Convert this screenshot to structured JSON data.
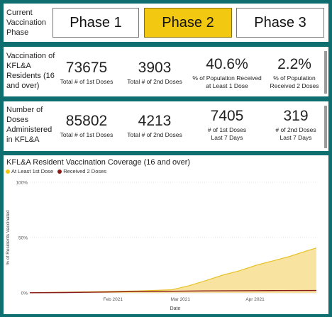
{
  "phase": {
    "label": "Current Vaccination Phase",
    "buttons": [
      "Phase 1",
      "Phase 2",
      "Phase 3"
    ],
    "active": "Phase 2"
  },
  "residents": {
    "label": "Vaccination of KFL&A Residents (16 and over)",
    "stats": [
      {
        "value": "73675",
        "caption": "Total # of 1st Doses"
      },
      {
        "value": "3903",
        "caption": "Total # of 2nd Doses"
      },
      {
        "value": "40.6%",
        "caption": "% of Population Received at Least 1 Dose"
      },
      {
        "value": "2.2%",
        "caption": "% of Population Received 2 Doses"
      }
    ]
  },
  "doses": {
    "label": "Number of Doses Administered in KFL&A",
    "stats": [
      {
        "value": "85802",
        "caption": "Total # of 1st Doses"
      },
      {
        "value": "4213",
        "caption": "Total # of 2nd Doses"
      },
      {
        "value": "7405",
        "caption": "# of 1st Doses Last 7 Days"
      },
      {
        "value": "319",
        "caption": "# of 2nd Doses Last 7 Days"
      }
    ]
  },
  "colors": {
    "background": "#0f6f70",
    "active_phase": "#f2c811",
    "first_dose_line": "#e6c229",
    "first_dose_fill": "#f9e3a0",
    "second_dose_line": "#8b1a1a"
  },
  "chart_data": {
    "type": "area",
    "title": "KFL&A Resident Vaccination Coverage (16 and over)",
    "xlabel": "Date",
    "ylabel": "% of Residents Vaccinated",
    "ylim": [
      0,
      100
    ],
    "y_ticks": [
      "0%",
      "50%",
      "100%"
    ],
    "x_ticks": [
      "Feb 2021",
      "Mar 2021",
      "Apr 2021"
    ],
    "x_range": [
      "2021-01-01",
      "2021-04-30"
    ],
    "legend": "top-left",
    "grid": true,
    "series": [
      {
        "name": "At Least 1st Dose",
        "x": [
          "2021-01-01",
          "2021-01-15",
          "2021-02-01",
          "2021-02-15",
          "2021-03-01",
          "2021-03-08",
          "2021-03-15",
          "2021-03-22",
          "2021-03-29",
          "2021-04-05",
          "2021-04-12",
          "2021-04-19",
          "2021-04-26",
          "2021-04-30"
        ],
        "values": [
          0.2,
          0.6,
          1.2,
          1.8,
          2.8,
          6.5,
          11,
          16,
          20,
          25,
          29,
          33,
          38,
          40.6
        ]
      },
      {
        "name": "Received 2 Doses",
        "x": [
          "2021-01-01",
          "2021-01-15",
          "2021-02-01",
          "2021-02-15",
          "2021-03-01",
          "2021-03-15",
          "2021-04-01",
          "2021-04-15",
          "2021-04-30"
        ],
        "values": [
          0.1,
          0.3,
          0.8,
          1.2,
          1.5,
          1.8,
          2.0,
          2.1,
          2.2
        ]
      }
    ]
  }
}
